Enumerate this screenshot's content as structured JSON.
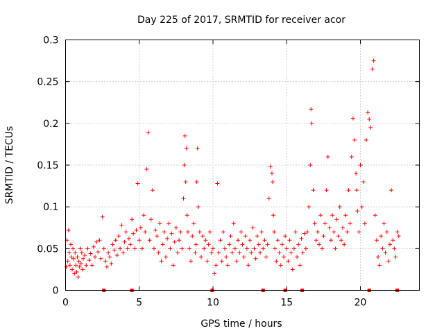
{
  "chart_data": {
    "type": "scatter",
    "title": "Day 225 of 2017, SRMTID for receiver acor",
    "xlabel": "GPS time / hours",
    "ylabel": "SRMTID / TECUs",
    "xlim": [
      0,
      24.0
    ],
    "ylim": [
      0,
      0.3
    ],
    "x_ticks": [
      0,
      5,
      10,
      15,
      20
    ],
    "x_tick_labels": [
      "0",
      "5",
      "10",
      "15",
      "20"
    ],
    "y_ticks": [
      0,
      0.05,
      0.1,
      0.15,
      0.2,
      0.25,
      0.3
    ],
    "y_tick_labels": [
      "0",
      "0.05",
      "0.1",
      "0.15",
      "0.2",
      "0.25",
      "0.3"
    ],
    "grid": true,
    "marker": "plus",
    "color": "#ff0000",
    "series": [
      {
        "name": "SRMTID",
        "x": [
          0.05,
          0.1,
          0.15,
          0.2,
          0.25,
          0.3,
          0.35,
          0.4,
          0.45,
          0.5,
          0.55,
          0.6,
          0.65,
          0.7,
          0.75,
          0.8,
          0.85,
          0.9,
          0.95,
          1.0,
          1.05,
          1.1,
          1.15,
          1.2,
          1.3,
          1.4,
          1.5,
          1.6,
          1.7,
          1.8,
          1.9,
          2.0,
          2.1,
          2.2,
          2.3,
          2.4,
          2.5,
          2.6,
          2.7,
          2.8,
          2.9,
          3.0,
          3.1,
          3.2,
          3.3,
          3.4,
          3.5,
          3.6,
          3.7,
          3.8,
          3.9,
          4.0,
          4.1,
          4.2,
          4.3,
          4.4,
          4.5,
          4.6,
          4.7,
          4.8,
          4.9,
          5.0,
          5.1,
          5.2,
          5.3,
          5.4,
          5.5,
          5.6,
          5.7,
          5.8,
          5.9,
          6.0,
          6.1,
          6.2,
          6.3,
          6.4,
          6.5,
          6.6,
          6.7,
          6.8,
          6.9,
          7.0,
          7.1,
          7.2,
          7.3,
          7.4,
          7.5,
          7.6,
          7.7,
          7.8,
          7.9,
          8.0,
          8.05,
          8.1,
          8.15,
          8.2,
          8.25,
          8.3,
          8.4,
          8.5,
          8.6,
          8.7,
          8.8,
          8.85,
          8.9,
          8.95,
          9.0,
          9.1,
          9.2,
          9.3,
          9.4,
          9.5,
          9.6,
          9.7,
          9.8,
          9.9,
          10.0,
          10.1,
          10.2,
          10.3,
          10.4,
          10.5,
          10.6,
          10.7,
          10.8,
          10.9,
          11.0,
          11.1,
          11.2,
          11.3,
          11.4,
          11.5,
          11.6,
          11.7,
          11.8,
          11.9,
          12.0,
          12.1,
          12.2,
          12.3,
          12.4,
          12.5,
          12.6,
          12.7,
          12.8,
          12.9,
          13.0,
          13.1,
          13.2,
          13.3,
          13.4,
          13.5,
          13.6,
          13.7,
          13.8,
          13.9,
          14.0,
          14.05,
          14.1,
          14.15,
          14.2,
          14.3,
          14.4,
          14.5,
          14.6,
          14.7,
          14.8,
          14.9,
          15.0,
          15.1,
          15.2,
          15.3,
          15.4,
          15.5,
          15.6,
          15.7,
          15.8,
          15.9,
          16.0,
          16.1,
          16.2,
          16.3,
          16.4,
          16.5,
          16.6,
          16.65,
          16.7,
          16.8,
          16.9,
          17.0,
          17.1,
          17.2,
          17.3,
          17.4,
          17.5,
          17.6,
          17.7,
          17.8,
          17.9,
          18.0,
          18.1,
          18.2,
          18.3,
          18.4,
          18.5,
          18.6,
          18.7,
          18.8,
          18.9,
          19.0,
          19.1,
          19.2,
          19.3,
          19.4,
          19.5,
          19.6,
          19.7,
          19.75,
          19.8,
          19.9,
          20.0,
          20.1,
          20.2,
          20.3,
          20.4,
          20.5,
          20.6,
          20.7,
          20.8,
          20.9,
          21.0,
          21.1,
          21.2,
          21.3,
          21.4,
          21.5,
          21.6,
          21.7,
          21.8,
          21.9,
          22.0,
          22.1,
          22.2,
          22.3,
          22.4,
          22.5,
          22.6
        ],
        "y": [
          0.028,
          0.06,
          0.035,
          0.072,
          0.045,
          0.03,
          0.055,
          0.04,
          0.025,
          0.05,
          0.038,
          0.02,
          0.045,
          0.03,
          0.022,
          0.04,
          0.016,
          0.035,
          0.028,
          0.05,
          0.032,
          0.045,
          0.025,
          0.038,
          0.042,
          0.03,
          0.05,
          0.036,
          0.044,
          0.03,
          0.052,
          0.04,
          0.058,
          0.046,
          0.06,
          0.038,
          0.088,
          0.05,
          0.035,
          0.028,
          0.045,
          0.04,
          0.032,
          0.055,
          0.048,
          0.06,
          0.042,
          0.065,
          0.05,
          0.078,
          0.045,
          0.058,
          0.07,
          0.05,
          0.062,
          0.055,
          0.085,
          0.068,
          0.05,
          0.072,
          0.128,
          0.06,
          0.075,
          0.05,
          0.09,
          0.07,
          0.145,
          0.189,
          0.06,
          0.085,
          0.12,
          0.05,
          0.072,
          0.065,
          0.045,
          0.08,
          0.035,
          0.055,
          0.07,
          0.04,
          0.062,
          0.08,
          0.05,
          0.068,
          0.03,
          0.058,
          0.075,
          0.045,
          0.06,
          0.07,
          0.05,
          0.11,
          0.15,
          0.185,
          0.13,
          0.17,
          0.09,
          0.07,
          0.05,
          0.035,
          0.065,
          0.08,
          0.045,
          0.055,
          0.13,
          0.17,
          0.1,
          0.07,
          0.04,
          0.065,
          0.05,
          0.06,
          0.035,
          0.055,
          0.07,
          0.045,
          0.05,
          0.02,
          0.03,
          0.128,
          0.045,
          0.06,
          0.035,
          0.07,
          0.05,
          0.04,
          0.03,
          0.055,
          0.065,
          0.045,
          0.08,
          0.05,
          0.035,
          0.06,
          0.045,
          0.07,
          0.055,
          0.04,
          0.065,
          0.05,
          0.03,
          0.06,
          0.045,
          0.075,
          0.05,
          0.038,
          0.065,
          0.055,
          0.045,
          0.07,
          0.05,
          0.06,
          0.04,
          0.055,
          0.11,
          0.148,
          0.14,
          0.13,
          0.09,
          0.07,
          0.05,
          0.035,
          0.06,
          0.045,
          0.03,
          0.055,
          0.04,
          0.065,
          0.05,
          0.035,
          0.06,
          0.045,
          0.025,
          0.05,
          0.07,
          0.04,
          0.055,
          0.03,
          0.062,
          0.045,
          0.068,
          0.05,
          0.07,
          0.1,
          0.15,
          0.217,
          0.2,
          0.12,
          0.08,
          0.06,
          0.07,
          0.055,
          0.09,
          0.05,
          0.065,
          0.08,
          0.12,
          0.16,
          0.075,
          0.06,
          0.09,
          0.07,
          0.05,
          0.085,
          0.065,
          0.1,
          0.06,
          0.075,
          0.055,
          0.09,
          0.07,
          0.12,
          0.08,
          0.16,
          0.206,
          0.18,
          0.14,
          0.12,
          0.095,
          0.07,
          0.15,
          0.1,
          0.13,
          0.08,
          0.18,
          0.213,
          0.205,
          0.195,
          0.265,
          0.275,
          0.09,
          0.06,
          0.04,
          0.03,
          0.065,
          0.05,
          0.08,
          0.045,
          0.07,
          0.035,
          0.055,
          0.12,
          0.06,
          0.05,
          0.04,
          0.07,
          0.065
        ]
      }
    ],
    "gap_markers_x": [
      2.6,
      4.5,
      9.95,
      13.4,
      14.9,
      16.05,
      20.6,
      22.5
    ]
  }
}
